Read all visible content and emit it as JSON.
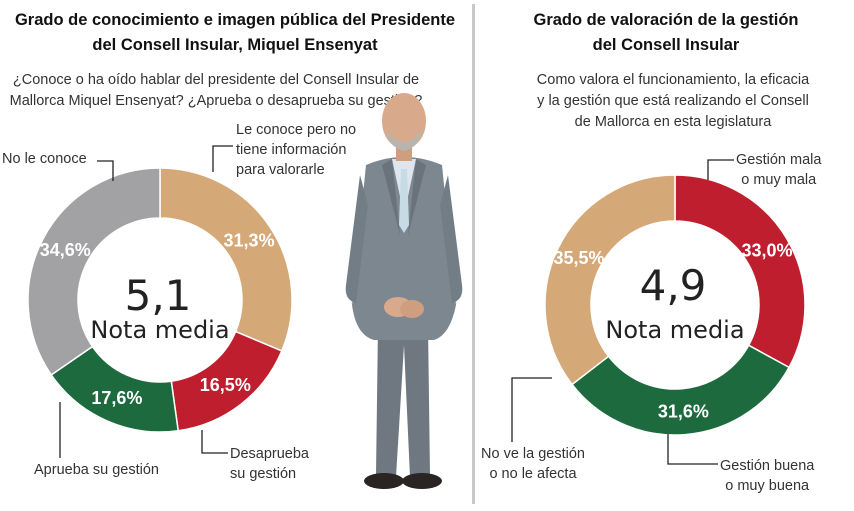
{
  "left": {
    "title_line1": "Grado de conocimiento e imagen pública del Presidente",
    "title_line2": "del Consell Insular, Miquel Ensenyat",
    "question_line1": "¿Conoce o ha oído hablar del presidente del Consell Insular de",
    "question_line2": "Mallorca Miquel Ensenyat? ¿Aprueba o desaprueba su gestión?",
    "center_value": "5,1",
    "center_label": "Nota media",
    "callouts": {
      "no_conoce": "No le conoce",
      "conoce_sin_info_1": "Le conoce pero no",
      "conoce_sin_info_2": "tiene información",
      "conoce_sin_info_3": "para valorarle",
      "aprueba": "Aprueba su gestión",
      "desaprueba_1": "Desaprueba",
      "desaprueba_2": "su gestión"
    }
  },
  "right": {
    "title_line1": "Grado de valoración de la gestión",
    "title_line2": "del Consell Insular",
    "question_line1": "Como valora el funcionamiento, la eficacia",
    "question_line2": "y la gestión que está realizando el Consell",
    "question_line3": "de Mallorca en esta legislatura",
    "center_value": "4,9",
    "center_label": "Nota media",
    "callouts": {
      "mala_1": "Gestión mala",
      "mala_2": "o muy mala",
      "buena_1": "Gestión buena",
      "buena_2": "o muy buena",
      "no_ve_1": "No ve la gestión",
      "no_ve_2": "o no le afecta"
    }
  },
  "colors": {
    "gray": "#a2a2a4",
    "tan": "#d4a877",
    "red": "#be1e2d",
    "green": "#1d6a3f"
  },
  "chart_data": [
    {
      "type": "pie",
      "categories": [
        "Le conoce pero no tiene información para valorarle",
        "Desaprueba su gestión",
        "Aprueba su gestión",
        "No le conoce"
      ],
      "values": [
        31.3,
        16.5,
        17.6,
        34.6
      ],
      "value_labels": [
        "31,3%",
        "16,5%",
        "17,6%",
        "34,6%"
      ],
      "colors": [
        "#d4a877",
        "#be1e2d",
        "#1d6a3f",
        "#a2a2a4"
      ],
      "title": "Grado de conocimiento e imagen pública del Presidente del Consell Insular, Miquel Ensenyat"
    },
    {
      "type": "pie",
      "categories": [
        "Gestión mala o muy mala",
        "Gestión buena o muy buena",
        "No ve la gestión o no le afecta"
      ],
      "values": [
        33.0,
        31.6,
        35.5
      ],
      "value_labels": [
        "33,0%",
        "31,6%",
        "35,5%"
      ],
      "colors": [
        "#be1e2d",
        "#1d6a3f",
        "#d4a877"
      ],
      "title": "Grado de valoración de la gestión del Consell Insular"
    }
  ]
}
